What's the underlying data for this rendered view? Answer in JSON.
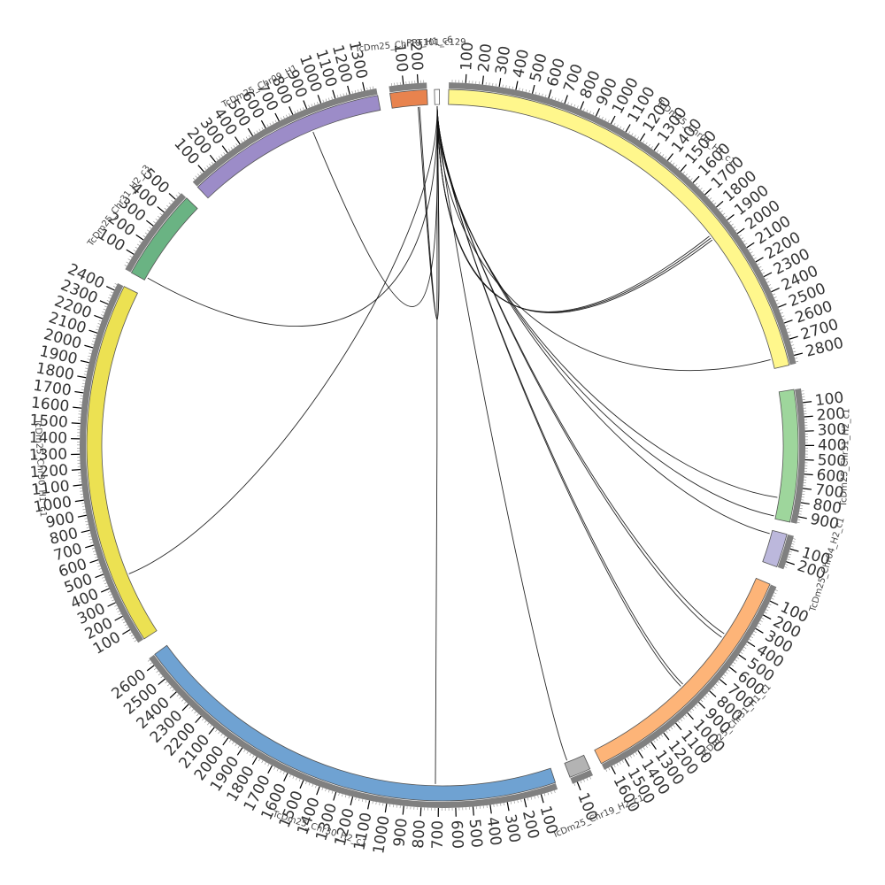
{
  "diagram": {
    "type": "circos",
    "colors": {
      "segment_outline": "#555555",
      "tick_track": "#808080",
      "link": "#111111"
    },
    "segments": [
      {
        "id": "PRF101",
        "label": "PRF101_c129",
        "length": 20,
        "color": "#ffffff",
        "start_deg": -1.3,
        "end_deg": -0.5,
        "tick_step": 100
      },
      {
        "id": "chr04h1",
        "label": "TcDm25_Chr04_H1_c1",
        "length": 2850,
        "color": "#fff78c",
        "start_deg": 1.0,
        "end_deg": 77.0,
        "tick_step": 100
      },
      {
        "id": "chr31h2",
        "label": "TcDm25_Chr31_H2_c1",
        "length": 950,
        "color": "#9ed69c",
        "start_deg": 81.0,
        "end_deg": 102.5,
        "tick_step": 100
      },
      {
        "id": "chr04h2",
        "label": "TcDm25_Chr04_H2_c1",
        "length": 260,
        "color": "#bcb8dc",
        "start_deg": 104.5,
        "end_deg": 110.0,
        "tick_step": 100
      },
      {
        "id": "chr31h1",
        "label": "TcDm25_Chr31_H1_c1",
        "length": 1650,
        "color": "#fdb478",
        "start_deg": 113.0,
        "end_deg": 153.5,
        "tick_step": 100
      },
      {
        "id": "chr19h2",
        "label": "TcDm25_Chr19_H2_c1",
        "length": 130,
        "color": "#b3b3b3",
        "start_deg": 155.5,
        "end_deg": 159.0,
        "tick_step": 100
      },
      {
        "id": "chr30h2",
        "label": "TcDm25_Chr30_H2_c1",
        "length": 2650,
        "color": "#6fa2d2",
        "start_deg": 161.5,
        "end_deg": 234.0,
        "tick_step": 100
      },
      {
        "id": "chr30h1",
        "label": "TcDm25_Chr30_H1_c1",
        "length": 2450,
        "color": "#ece152",
        "start_deg": 237.0,
        "end_deg": 296.5,
        "tick_step": 100
      },
      {
        "id": "chr31h2c3",
        "label": "TcDm25_Chr31_H2_c3",
        "length": 550,
        "color": "#6ab383",
        "start_deg": 299.0,
        "end_deg": 314.0,
        "tick_step": 100
      },
      {
        "id": "chr09h1",
        "label": "TcDm25_Chr09_H1",
        "length": 1380,
        "color": "#9c8cc8",
        "start_deg": 316.5,
        "end_deg": 349.5,
        "tick_step": 100
      },
      {
        "id": "chr19h1",
        "label": "TcDm25_Chr19_H1_c6",
        "length": 260,
        "color": "#e8834e",
        "start_deg": 351.5,
        "end_deg": 357.5,
        "tick_step": 100
      }
    ],
    "links": [
      {
        "from": "PRF101",
        "from_pos": 10,
        "to": "chr04h1",
        "to_pos": 1910
      },
      {
        "from": "PRF101",
        "from_pos": 10,
        "to": "chr04h1",
        "to_pos": 1925
      },
      {
        "from": "PRF101",
        "from_pos": 10,
        "to": "chr04h1",
        "to_pos": 1940
      },
      {
        "from": "PRF101",
        "from_pos": 10,
        "to": "chr04h1",
        "to_pos": 2790
      },
      {
        "from": "PRF101",
        "from_pos": 10,
        "to": "chr31h2",
        "to_pos": 790
      },
      {
        "from": "PRF101",
        "from_pos": 10,
        "to": "chr31h2",
        "to_pos": 930
      },
      {
        "from": "PRF101",
        "from_pos": 10,
        "to": "chr04h2",
        "to_pos": 30
      },
      {
        "from": "PRF101",
        "from_pos": 10,
        "to": "chr31h1",
        "to_pos": 440
      },
      {
        "from": "PRF101",
        "from_pos": 10,
        "to": "chr31h1",
        "to_pos": 470
      },
      {
        "from": "PRF101",
        "from_pos": 10,
        "to": "chr31h1",
        "to_pos": 890
      },
      {
        "from": "PRF101",
        "from_pos": 10,
        "to": "chr31h1",
        "to_pos": 910
      },
      {
        "from": "PRF101",
        "from_pos": 10,
        "to": "chr19h2",
        "to_pos": 110
      },
      {
        "from": "PRF101",
        "from_pos": 10,
        "to": "chr30h2",
        "to_pos": 720
      },
      {
        "from": "PRF101",
        "from_pos": 10,
        "to": "chr30h1",
        "to_pos": 440
      },
      {
        "from": "PRF101",
        "from_pos": 10,
        "to": "chr31h2c3",
        "to_pos": 20
      },
      {
        "from": "PRF101",
        "from_pos": 10,
        "to": "chr09h1",
        "to_pos": 880
      },
      {
        "from": "PRF101",
        "from_pos": 10,
        "to": "chr19h1",
        "to_pos": 190
      },
      {
        "from": "PRF101",
        "from_pos": 10,
        "to": "chr19h1",
        "to_pos": 200
      }
    ]
  }
}
